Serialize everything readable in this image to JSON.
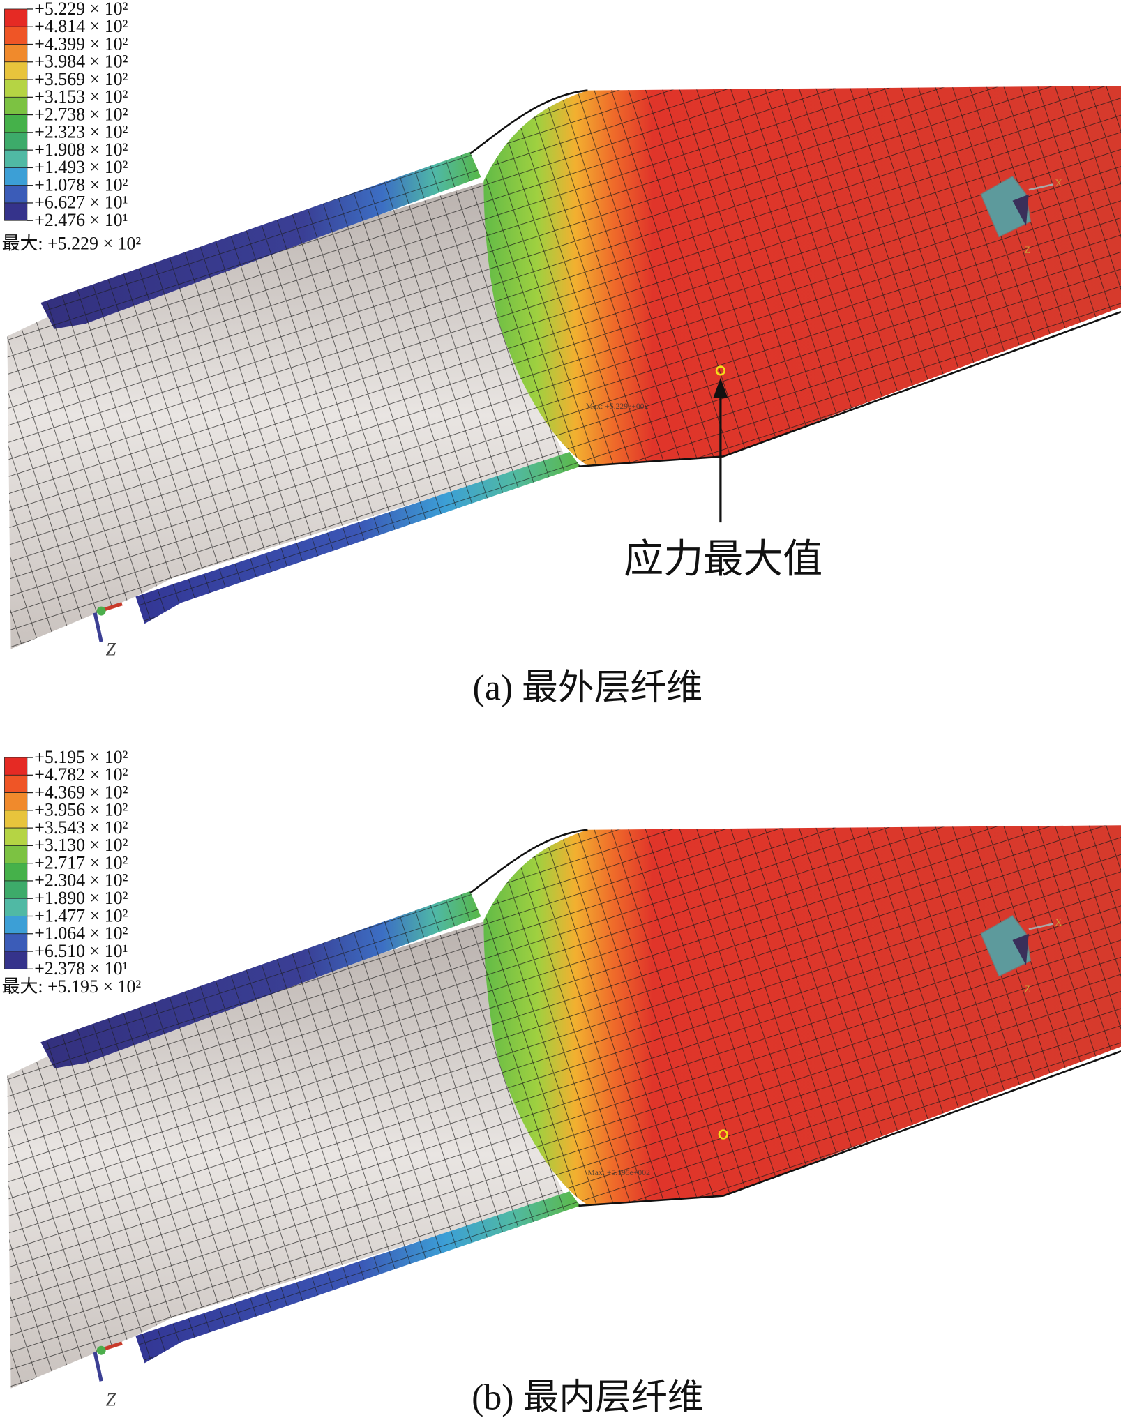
{
  "panels": [
    {
      "legend": {
        "labels": [
          "+5.229 × 10²",
          "+4.814 × 10²",
          "+4.399 × 10²",
          "+3.984 × 10²",
          "+3.569 × 10²",
          "+3.153 × 10²",
          "+2.738 × 10²",
          "+2.323 × 10²",
          "+1.908 × 10²",
          "+1.493 × 10²",
          "+1.078 × 10²",
          "+6.627 × 10¹",
          "+2.476 × 10¹"
        ],
        "colors": [
          "#e52a24",
          "#ef5526",
          "#f08a2c",
          "#e8c43c",
          "#b5d444",
          "#7cc242",
          "#45b14a",
          "#3dab6a",
          "#50b9a4",
          "#3c9fd6",
          "#3b5cb8",
          "#35338b"
        ]
      },
      "max_label": "最大: +5.229 × 10²",
      "probe_label": "Max: +5.229e+002",
      "annotation": "应力最大值",
      "triad": {
        "x": "X",
        "z": "Z"
      },
      "origin_axis": "Z",
      "caption": "(a) 最外层纤维"
    },
    {
      "legend": {
        "labels": [
          "+5.195 × 10²",
          "+4.782 × 10²",
          "+4.369 × 10²",
          "+3.956 × 10²",
          "+3.543 × 10²",
          "+3.130 × 10²",
          "+2.717 × 10²",
          "+2.304 × 10²",
          "+1.890 × 10²",
          "+1.477 × 10²",
          "+1.064 × 10²",
          "+6.510 × 10¹",
          "+2.378 × 10¹"
        ],
        "colors": [
          "#e52a24",
          "#ef5526",
          "#f08a2c",
          "#e8c43c",
          "#b5d444",
          "#7cc242",
          "#45b14a",
          "#3dab6a",
          "#50b9a4",
          "#3c9fd6",
          "#3b5cb8",
          "#35338b"
        ]
      },
      "max_label": "最大: +5.195 × 10²",
      "probe_label": "Max: +5.195e+002",
      "triad": {
        "x": "X",
        "z": "Z"
      },
      "origin_axis": "Z",
      "caption": "(b) 最内层纤维"
    }
  ]
}
